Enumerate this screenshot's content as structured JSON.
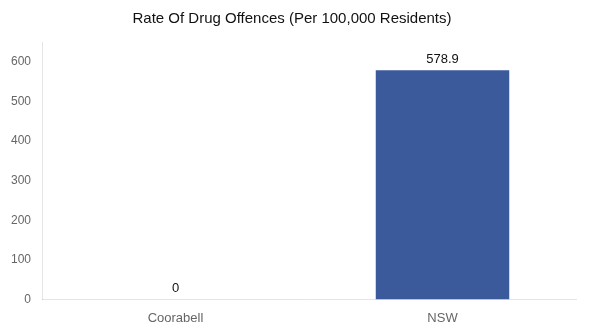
{
  "chart_data": {
    "type": "bar",
    "title": "Rate Of Drug Offences (Per 100,000 Residents)",
    "categories": [
      "Coorabell",
      "NSW"
    ],
    "values": [
      0,
      578.9
    ],
    "color": "#3a5a9b",
    "ylim": [
      0,
      650
    ],
    "yticks": [
      0,
      100,
      200,
      300,
      400,
      500,
      600
    ],
    "grid": false,
    "data_labels": true
  }
}
